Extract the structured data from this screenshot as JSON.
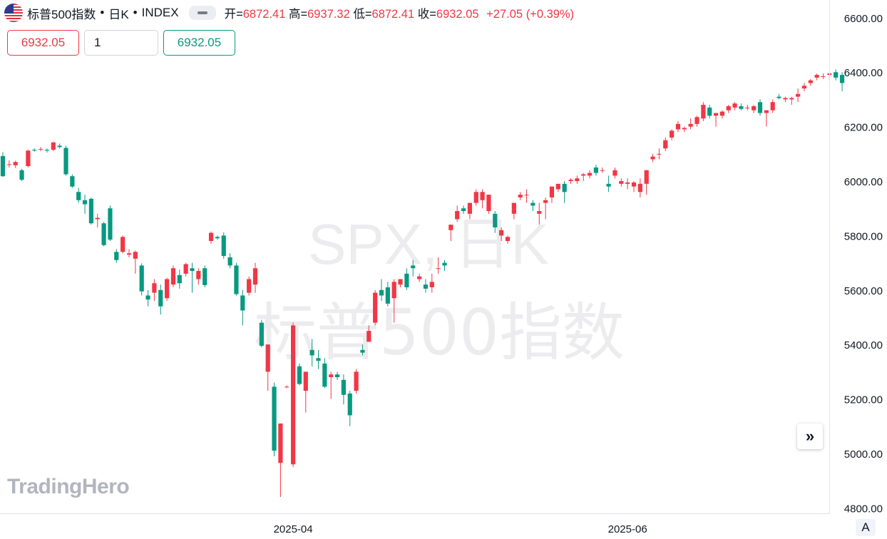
{
  "header": {
    "symbol_name": "标普500指数",
    "separator": "•",
    "interval": "日K",
    "exchange": "INDEX",
    "ohlc": {
      "open_label": "开=",
      "open": "6872.41",
      "high_label": "高=",
      "high": "6937.32",
      "low_label": "低=",
      "low": "6872.41",
      "close_label": "收=",
      "close": "6932.05",
      "change": "+27.05",
      "change_pct": "(+0.39%)"
    }
  },
  "trade": {
    "sell_price": "6932.05",
    "quantity": "1",
    "buy_price": "6932.05"
  },
  "watermark": {
    "line1": "SPX, 日K",
    "line2": "标普500指数"
  },
  "logo": "TradingHero",
  "buttons": {
    "scroll_right_icon": "double-chevron-right-icon",
    "auto_scale": "A"
  },
  "colors": {
    "up": "#f23645",
    "down": "#089981",
    "text": "#131722",
    "grid_border": "#e0e3eb"
  },
  "chart_data": {
    "type": "candlestick",
    "up_color": "#f23645",
    "down_color": "#089981",
    "x_labels": [
      {
        "label": "2025-04",
        "index": 46
      },
      {
        "label": "2025-06",
        "index": 99
      }
    ],
    "y_ticks": [
      4800,
      5000,
      5200,
      5400,
      5600,
      5800,
      6000,
      6200,
      6400,
      6600
    ],
    "y_range": [
      4780,
      6665
    ],
    "candles": [
      [
        6092,
        6106,
        6015,
        6018
      ],
      [
        6060,
        6076,
        6050,
        6062
      ],
      [
        6058,
        6075,
        6048,
        6070
      ],
      [
        6040,
        6045,
        6000,
        6005
      ],
      [
        6055,
        6115,
        6050,
        6112
      ],
      [
        6115,
        6120,
        6108,
        6112
      ],
      [
        6118,
        6125,
        6110,
        6118
      ],
      [
        6115,
        6120,
        6105,
        6112
      ],
      [
        6115,
        6145,
        6110,
        6142
      ],
      [
        6130,
        6138,
        6120,
        6125
      ],
      [
        6122,
        6130,
        6020,
        6025
      ],
      [
        6018,
        6025,
        5975,
        5980
      ],
      [
        5960,
        5975,
        5920,
        5930
      ],
      [
        5930,
        5950,
        5880,
        5915
      ],
      [
        5935,
        5940,
        5840,
        5845
      ],
      [
        5860,
        5880,
        5830,
        5865
      ],
      [
        5845,
        5850,
        5760,
        5765
      ],
      [
        5900,
        5910,
        5780,
        5785
      ],
      [
        5740,
        5750,
        5700,
        5710
      ],
      [
        5740,
        5800,
        5735,
        5795
      ],
      [
        5730,
        5750,
        5720,
        5735
      ],
      [
        5715,
        5745,
        5660,
        5740
      ],
      [
        5690,
        5698,
        5580,
        5595
      ],
      [
        5580,
        5600,
        5540,
        5565
      ],
      [
        5590,
        5640,
        5560,
        5625
      ],
      [
        5600,
        5620,
        5510,
        5540
      ],
      [
        5570,
        5645,
        5560,
        5640
      ],
      [
        5620,
        5690,
        5610,
        5680
      ],
      [
        5655,
        5675,
        5605,
        5625
      ],
      [
        5660,
        5700,
        5650,
        5695
      ],
      [
        5680,
        5700,
        5590,
        5670
      ],
      [
        5640,
        5680,
        5620,
        5670
      ],
      [
        5680,
        5690,
        5610,
        5618
      ],
      [
        5780,
        5815,
        5770,
        5810
      ],
      [
        5795,
        5800,
        5785,
        5790
      ],
      [
        5800,
        5812,
        5715,
        5725
      ],
      [
        5720,
        5735,
        5680,
        5690
      ],
      [
        5690,
        5700,
        5580,
        5585
      ],
      [
        5580,
        5600,
        5470,
        5525
      ],
      [
        5590,
        5650,
        5580,
        5640
      ],
      [
        5620,
        5700,
        5590,
        5680
      ],
      [
        5480,
        5490,
        5390,
        5395
      ],
      [
        5300,
        5400,
        5230,
        5400
      ],
      [
        5245,
        5260,
        4990,
        5010
      ],
      [
        4965,
        5110,
        4840,
        5110
      ],
      [
        5245,
        5250,
        5240,
        5245
      ],
      [
        4960,
        5480,
        4950,
        5470
      ],
      [
        5320,
        5330,
        5250,
        5255
      ],
      [
        5230,
        5300,
        5150,
        5300
      ],
      [
        5380,
        5420,
        5320,
        5360
      ],
      [
        5350,
        5380,
        5310,
        5340
      ],
      [
        5330,
        5350,
        5240,
        5245
      ],
      [
        5280,
        5300,
        5200,
        5290
      ],
      [
        5290,
        5300,
        5270,
        5280
      ],
      [
        5270,
        5290,
        5180,
        5215
      ],
      [
        5220,
        5230,
        5100,
        5140
      ],
      [
        5230,
        5310,
        5220,
        5300
      ],
      [
        5380,
        5400,
        5360,
        5370
      ],
      [
        5410,
        5470,
        5410,
        5450
      ],
      [
        5480,
        5600,
        5470,
        5590
      ],
      [
        5600,
        5640,
        5560,
        5580
      ],
      [
        5610,
        5630,
        5540,
        5550
      ],
      [
        5570,
        5640,
        5480,
        5630
      ],
      [
        5620,
        5640,
        5610,
        5640
      ],
      [
        5660,
        5680,
        5600,
        5610
      ],
      [
        5690,
        5710,
        5650,
        5680
      ],
      [
        5640,
        5660,
        5630,
        5650
      ],
      [
        5620,
        5640,
        5590,
        5605
      ],
      [
        5610,
        5660,
        5590,
        5630
      ],
      [
        5680,
        5720,
        5660,
        5680
      ],
      [
        5700,
        5710,
        5670,
        5690
      ],
      [
        5820,
        5840,
        5780,
        5840
      ],
      [
        5860,
        5910,
        5850,
        5890
      ],
      [
        5900,
        5910,
        5880,
        5890
      ],
      [
        5880,
        5920,
        5860,
        5920
      ],
      [
        5920,
        5970,
        5910,
        5960
      ],
      [
        5930,
        5970,
        5900,
        5960
      ],
      [
        5890,
        5950,
        5880,
        5950
      ],
      [
        5880,
        5890,
        5810,
        5830
      ],
      [
        5800,
        5830,
        5780,
        5820
      ],
      [
        5780,
        5800,
        5770,
        5795
      ],
      [
        5880,
        5920,
        5860,
        5920
      ],
      [
        5940,
        5960,
        5930,
        5950
      ],
      [
        5950,
        5970,
        5920,
        5950
      ],
      [
        5920,
        5930,
        5890,
        5910
      ],
      [
        5880,
        5920,
        5840,
        5890
      ],
      [
        5920,
        5940,
        5860,
        5930
      ],
      [
        5940,
        5980,
        5920,
        5980
      ],
      [
        5970,
        5990,
        5960,
        5990
      ],
      [
        5990,
        6000,
        5920,
        5960
      ],
      [
        6000,
        6010,
        5990,
        6005
      ],
      [
        6000,
        6020,
        5990,
        6010
      ],
      [
        6020,
        6030,
        6000,
        6025
      ],
      [
        6020,
        6040,
        6010,
        6030
      ],
      [
        6050,
        6060,
        6020,
        6030
      ],
      [
        6040,
        6050,
        6030,
        6040
      ],
      [
        5990,
        6020,
        5960,
        5980
      ],
      [
        6020,
        6050,
        6010,
        6040
      ],
      [
        5990,
        6010,
        5980,
        6000
      ],
      [
        5990,
        6010,
        5970,
        5995
      ],
      [
        5980,
        6000,
        5960,
        5995
      ],
      [
        5960,
        6010,
        5940,
        5990
      ],
      [
        5990,
        6040,
        5950,
        6040
      ],
      [
        6080,
        6100,
        6070,
        6090
      ],
      [
        6100,
        6120,
        6080,
        6100
      ],
      [
        6120,
        6160,
        6110,
        6150
      ],
      [
        6160,
        6190,
        6150,
        6185
      ],
      [
        6190,
        6220,
        6180,
        6210
      ],
      [
        6190,
        6200,
        6180,
        6195
      ],
      [
        6200,
        6230,
        6190,
        6210
      ],
      [
        6210,
        6240,
        6200,
        6235
      ],
      [
        6230,
        6290,
        6220,
        6280
      ],
      [
        6270,
        6280,
        6230,
        6240
      ],
      [
        6240,
        6250,
        6200,
        6250
      ],
      [
        6240,
        6260,
        6230,
        6255
      ],
      [
        6260,
        6280,
        6250,
        6275
      ],
      [
        6270,
        6290,
        6260,
        6285
      ],
      [
        6275,
        6285,
        6260,
        6265
      ],
      [
        6270,
        6280,
        6260,
        6270
      ],
      [
        6260,
        6280,
        6250,
        6275
      ],
      [
        6290,
        6300,
        6240,
        6250
      ],
      [
        6250,
        6260,
        6200,
        6260
      ],
      [
        6260,
        6300,
        6250,
        6290
      ],
      [
        6310,
        6320,
        6300,
        6305
      ],
      [
        6300,
        6310,
        6290,
        6305
      ],
      [
        6300,
        6310,
        6280,
        6305
      ],
      [
        6310,
        6340,
        6290,
        6320
      ],
      [
        6340,
        6360,
        6330,
        6350
      ],
      [
        6360,
        6375,
        6350,
        6370
      ],
      [
        6380,
        6395,
        6370,
        6390
      ],
      [
        6385,
        6395,
        6375,
        6385
      ],
      [
        6390,
        6400,
        6370,
        6395
      ],
      [
        6400,
        6410,
        6370,
        6380
      ],
      [
        6390,
        6400,
        6330,
        6360
      ]
    ]
  }
}
